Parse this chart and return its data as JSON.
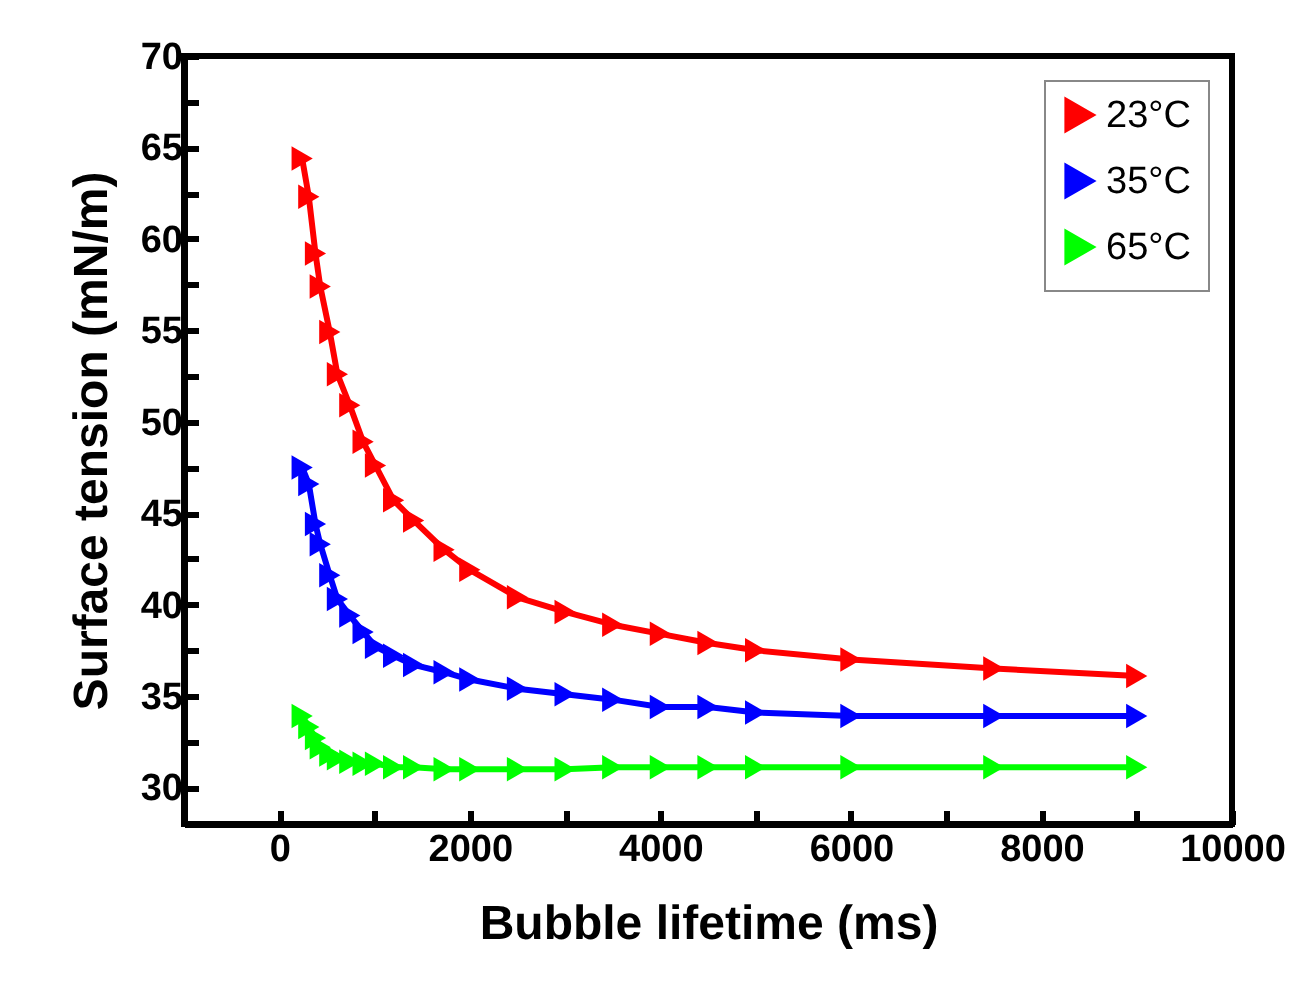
{
  "chart_data": {
    "type": "line",
    "xlabel": "Bubble lifetime (ms)",
    "ylabel": "Surface tension (mN/m)",
    "x": [
      240,
      310,
      380,
      430,
      530,
      610,
      740,
      880,
      1010,
      1200,
      1410,
      1730,
      2000,
      2500,
      3000,
      3500,
      4000,
      4500,
      5000,
      6000,
      7500,
      9000
    ],
    "series": [
      {
        "name": "23°C",
        "color": "#ff0000",
        "values": [
          64.4,
          62.3,
          59.2,
          57.4,
          54.9,
          52.6,
          50.9,
          48.9,
          47.6,
          45.7,
          44.6,
          43.0,
          41.9,
          40.4,
          39.6,
          38.9,
          38.4,
          37.9,
          37.5,
          37.0,
          36.5,
          36.1
        ]
      },
      {
        "name": "35°C",
        "color": "#0000ff",
        "values": [
          47.5,
          46.6,
          44.4,
          43.3,
          41.6,
          40.3,
          39.4,
          38.5,
          37.7,
          37.2,
          36.7,
          36.3,
          35.9,
          35.4,
          35.1,
          34.8,
          34.4,
          34.4,
          34.1,
          33.9,
          33.9,
          33.9
        ]
      },
      {
        "name": "65°C",
        "color": "#00ff00",
        "values": [
          33.9,
          33.3,
          32.7,
          32.2,
          31.8,
          31.6,
          31.4,
          31.3,
          31.3,
          31.1,
          31.1,
          31.0,
          31.0,
          31.0,
          31.0,
          31.1,
          31.1,
          31.1,
          31.1,
          31.1,
          31.1,
          31.1
        ]
      }
    ],
    "xlim": [
      -1000,
      10000
    ],
    "xticks": [
      {
        "value": -1000,
        "label": null
      },
      0,
      {
        "value": 1000,
        "label": null
      },
      2000,
      {
        "value": 3000,
        "label": null
      },
      4000,
      {
        "value": 5000,
        "label": null
      },
      6000,
      {
        "value": 7000,
        "label": null
      },
      8000,
      {
        "value": 9000,
        "label": null
      },
      10000
    ],
    "ylim": [
      28,
      70
    ],
    "yticks": [
      30,
      {
        "value": 32.5,
        "label": null
      },
      35,
      {
        "value": 37.5,
        "label": null
      },
      40,
      {
        "value": 42.5,
        "label": null
      },
      45,
      {
        "value": 47.5,
        "label": null
      },
      50,
      {
        "value": 52.5,
        "label": null
      },
      55,
      {
        "value": 57.5,
        "label": null
      },
      60,
      {
        "value": 62.5,
        "label": null
      },
      65,
      {
        "value": 67.5,
        "label": null
      },
      70
    ],
    "grid": false,
    "legend": "top right",
    "marker": "triangle",
    "line_style": "solid"
  }
}
